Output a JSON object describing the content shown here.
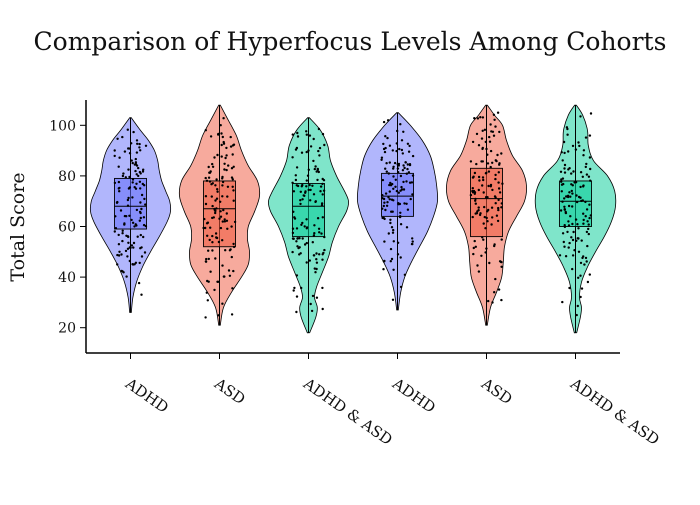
{
  "chart_data": {
    "type": "violin",
    "title": "Comparison of Hyperfocus Levels Among Cohorts",
    "xlabel": "",
    "ylabel": "Total Score",
    "ylim": [
      10,
      110
    ],
    "yticks": [
      20,
      40,
      60,
      80,
      100
    ],
    "grid": false,
    "legend": "none",
    "colors": {
      "ADHD": "#636efa",
      "ASD": "#ef553b",
      "ADHD & ASD": "#00cc96"
    },
    "groups": [
      {
        "label": "ADHD",
        "color": "#636efa",
        "min": 26,
        "q1": 59,
        "median": 68,
        "q3": 79,
        "max": 103,
        "density": [
          [
            26,
            0.02
          ],
          [
            32,
            0.06
          ],
          [
            38,
            0.15
          ],
          [
            44,
            0.3
          ],
          [
            50,
            0.5
          ],
          [
            56,
            0.72
          ],
          [
            62,
            0.92
          ],
          [
            66,
            1.0
          ],
          [
            70,
            0.98
          ],
          [
            74,
            0.88
          ],
          [
            78,
            0.78
          ],
          [
            82,
            0.72
          ],
          [
            86,
            0.68
          ],
          [
            90,
            0.6
          ],
          [
            94,
            0.45
          ],
          [
            98,
            0.25
          ],
          [
            103,
            0.02
          ]
        ]
      },
      {
        "label": "ASD",
        "color": "#ef553b",
        "min": 21,
        "q1": 52,
        "median": 67,
        "q3": 78,
        "max": 108,
        "density": [
          [
            21,
            0.02
          ],
          [
            28,
            0.1
          ],
          [
            34,
            0.3
          ],
          [
            40,
            0.55
          ],
          [
            45,
            0.72
          ],
          [
            50,
            0.75
          ],
          [
            55,
            0.7
          ],
          [
            60,
            0.72
          ],
          [
            66,
            0.88
          ],
          [
            72,
            1.0
          ],
          [
            78,
            0.95
          ],
          [
            84,
            0.72
          ],
          [
            90,
            0.55
          ],
          [
            96,
            0.42
          ],
          [
            102,
            0.22
          ],
          [
            108,
            0.02
          ]
        ]
      },
      {
        "label": "ADHD & ASD",
        "color": "#00cc96",
        "min": 18,
        "q1": 56,
        "median": 68,
        "q3": 77,
        "max": 103,
        "density": [
          [
            18,
            0.03
          ],
          [
            24,
            0.18
          ],
          [
            28,
            0.22
          ],
          [
            32,
            0.15
          ],
          [
            36,
            0.2
          ],
          [
            42,
            0.35
          ],
          [
            48,
            0.5
          ],
          [
            54,
            0.6
          ],
          [
            60,
            0.75
          ],
          [
            66,
            0.95
          ],
          [
            70,
            1.0
          ],
          [
            74,
            0.9
          ],
          [
            80,
            0.7
          ],
          [
            86,
            0.55
          ],
          [
            92,
            0.48
          ],
          [
            98,
            0.3
          ],
          [
            103,
            0.02
          ]
        ]
      },
      {
        "label": "ADHD",
        "color": "#636efa",
        "min": 27,
        "q1": 64,
        "median": 72,
        "q3": 81,
        "max": 105,
        "density": [
          [
            27,
            0.02
          ],
          [
            34,
            0.08
          ],
          [
            40,
            0.18
          ],
          [
            46,
            0.35
          ],
          [
            52,
            0.55
          ],
          [
            58,
            0.75
          ],
          [
            64,
            0.9
          ],
          [
            70,
            1.0
          ],
          [
            76,
            0.98
          ],
          [
            82,
            0.92
          ],
          [
            88,
            0.82
          ],
          [
            94,
            0.62
          ],
          [
            100,
            0.32
          ],
          [
            105,
            0.02
          ]
        ]
      },
      {
        "label": "ASD",
        "color": "#ef553b",
        "min": 21,
        "q1": 56,
        "median": 71,
        "q3": 83,
        "max": 108,
        "density": [
          [
            21,
            0.02
          ],
          [
            28,
            0.1
          ],
          [
            34,
            0.25
          ],
          [
            40,
            0.38
          ],
          [
            46,
            0.42
          ],
          [
            52,
            0.45
          ],
          [
            58,
            0.55
          ],
          [
            64,
            0.75
          ],
          [
            70,
            0.95
          ],
          [
            76,
            1.0
          ],
          [
            82,
            0.9
          ],
          [
            88,
            0.65
          ],
          [
            94,
            0.5
          ],
          [
            100,
            0.4
          ],
          [
            104,
            0.2
          ],
          [
            108,
            0.02
          ]
        ]
      },
      {
        "label": "ADHD & ASD",
        "color": "#00cc96",
        "min": 18,
        "q1": 60,
        "median": 70,
        "q3": 78,
        "max": 108,
        "density": [
          [
            18,
            0.03
          ],
          [
            24,
            0.12
          ],
          [
            28,
            0.15
          ],
          [
            32,
            0.1
          ],
          [
            38,
            0.15
          ],
          [
            44,
            0.3
          ],
          [
            50,
            0.5
          ],
          [
            56,
            0.72
          ],
          [
            62,
            0.9
          ],
          [
            68,
            1.0
          ],
          [
            74,
            0.98
          ],
          [
            80,
            0.8
          ],
          [
            86,
            0.45
          ],
          [
            92,
            0.32
          ],
          [
            98,
            0.3
          ],
          [
            104,
            0.18
          ],
          [
            108,
            0.02
          ]
        ]
      }
    ]
  }
}
